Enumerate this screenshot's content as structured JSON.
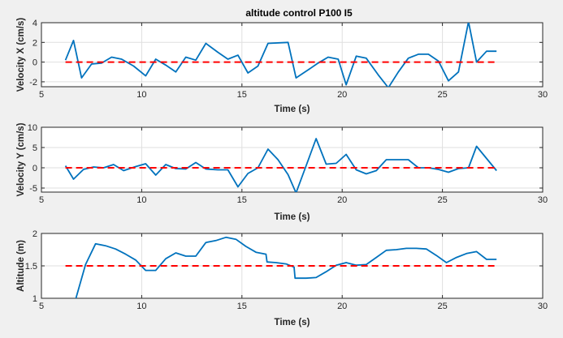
{
  "figure": {
    "background": "#f0f0f0"
  },
  "chart_data": [
    {
      "type": "line",
      "title": "altitude control P100 I5",
      "xlabel": "Time (s)",
      "ylabel": "Velocity X (cm/s)",
      "xlim": [
        5,
        30
      ],
      "ylim": [
        -2.5,
        4
      ],
      "xticks": [
        5,
        10,
        15,
        20,
        25,
        30
      ],
      "yticks": [
        -2,
        0,
        2,
        4
      ],
      "grid": true,
      "series": [
        {
          "color": "#0072bd",
          "style": "solid",
          "x": [
            6.2,
            6.6,
            7.0,
            7.5,
            8.0,
            8.5,
            9.0,
            9.6,
            10.2,
            10.7,
            11.2,
            11.7,
            12.2,
            12.7,
            13.2,
            13.8,
            14.3,
            14.8,
            15.3,
            15.8,
            16.3,
            17.3,
            17.7,
            18.3,
            18.8,
            19.3,
            19.8,
            20.2,
            20.7,
            21.2,
            21.8,
            22.3,
            22.8,
            23.3,
            23.8,
            24.3,
            24.8,
            25.3,
            25.8,
            26.3,
            26.7,
            27.2,
            27.7
          ],
          "y": [
            0.2,
            2.2,
            -1.6,
            -0.2,
            -0.1,
            0.5,
            0.3,
            -0.4,
            -1.4,
            0.3,
            -0.3,
            -1.0,
            0.5,
            0.2,
            1.9,
            1.0,
            0.3,
            0.7,
            -1.1,
            -0.4,
            1.9,
            2.0,
            -1.6,
            -0.8,
            -0.1,
            0.5,
            0.3,
            -2.3,
            0.6,
            0.4,
            -1.3,
            -2.6,
            -1.0,
            0.4,
            0.8,
            0.8,
            0.1,
            -1.9,
            -1.0,
            4.1,
            0.0,
            1.1,
            1.1
          ]
        },
        {
          "color": "#ff0000",
          "style": "dashed",
          "x": [
            6.2,
            27.7
          ],
          "y": [
            0,
            0
          ]
        }
      ]
    },
    {
      "type": "line",
      "title": "",
      "xlabel": "Time (s)",
      "ylabel": "Velocity Y (cm/s)",
      "xlim": [
        5,
        30
      ],
      "ylim": [
        -6,
        10
      ],
      "xticks": [
        5,
        10,
        15,
        20,
        25,
        30
      ],
      "yticks": [
        -5,
        0,
        5,
        10
      ],
      "grid": true,
      "series": [
        {
          "color": "#0072bd",
          "style": "solid",
          "x": [
            6.2,
            6.6,
            7.1,
            7.6,
            8.1,
            8.6,
            9.1,
            9.7,
            10.2,
            10.7,
            11.2,
            11.7,
            12.2,
            12.7,
            13.2,
            13.8,
            14.3,
            14.8,
            15.3,
            15.8,
            16.3,
            16.8,
            17.3,
            17.7,
            18.2,
            18.7,
            19.2,
            19.7,
            20.2,
            20.7,
            21.2,
            21.7,
            22.2,
            22.7,
            23.3,
            23.8,
            24.3,
            24.8,
            25.3,
            25.8,
            26.3,
            26.7,
            27.2,
            27.7
          ],
          "y": [
            0.5,
            -2.8,
            -0.4,
            0.2,
            0.0,
            0.8,
            -0.7,
            0.3,
            1.0,
            -1.8,
            0.8,
            -0.2,
            -0.3,
            1.3,
            -0.3,
            -0.5,
            -0.5,
            -4.7,
            -1.4,
            0.0,
            4.6,
            2.0,
            -1.7,
            -6.2,
            0.5,
            7.2,
            0.9,
            1.1,
            3.3,
            -0.5,
            -1.5,
            -0.7,
            2.0,
            2.0,
            2.0,
            0.0,
            0.0,
            -0.4,
            -1.1,
            -0.2,
            0.0,
            5.3,
            2.3,
            -0.7
          ]
        },
        {
          "color": "#ff0000",
          "style": "dashed",
          "x": [
            6.2,
            27.7
          ],
          "y": [
            0,
            0
          ]
        }
      ]
    },
    {
      "type": "line",
      "title": "",
      "xlabel": "Time (s)",
      "ylabel": "Altitude (m)",
      "xlim": [
        5,
        30
      ],
      "ylim": [
        1,
        2
      ],
      "xticks": [
        5,
        10,
        15,
        20,
        25,
        30
      ],
      "yticks": [
        1,
        1.5,
        2
      ],
      "grid": true,
      "series": [
        {
          "color": "#0072bd",
          "style": "solid",
          "x": [
            6.2,
            6.7,
            7.2,
            7.7,
            8.2,
            8.7,
            9.2,
            9.7,
            10.2,
            10.7,
            11.2,
            11.7,
            12.2,
            12.7,
            13.2,
            13.7,
            14.2,
            14.7,
            15.2,
            15.7,
            16.2,
            16.25,
            16.7,
            17.2,
            17.6,
            17.65,
            18.2,
            18.7,
            19.2,
            19.7,
            20.2,
            20.7,
            21.2,
            21.7,
            22.2,
            22.7,
            23.2,
            23.7,
            24.2,
            24.7,
            25.2,
            25.7,
            26.2,
            26.7,
            27.2,
            27.7
          ],
          "y": [
            0.97,
            0.98,
            1.52,
            1.84,
            1.81,
            1.76,
            1.68,
            1.59,
            1.43,
            1.43,
            1.61,
            1.7,
            1.65,
            1.65,
            1.86,
            1.89,
            1.94,
            1.91,
            1.8,
            1.71,
            1.68,
            1.56,
            1.55,
            1.53,
            1.48,
            1.31,
            1.31,
            1.32,
            1.41,
            1.51,
            1.55,
            1.51,
            1.52,
            1.63,
            1.74,
            1.75,
            1.77,
            1.77,
            1.76,
            1.66,
            1.55,
            1.63,
            1.69,
            1.72,
            1.6,
            1.6
          ]
        },
        {
          "color": "#ff0000",
          "style": "dashed",
          "x": [
            6.2,
            27.7
          ],
          "y": [
            1.5,
            1.5
          ]
        }
      ]
    }
  ]
}
